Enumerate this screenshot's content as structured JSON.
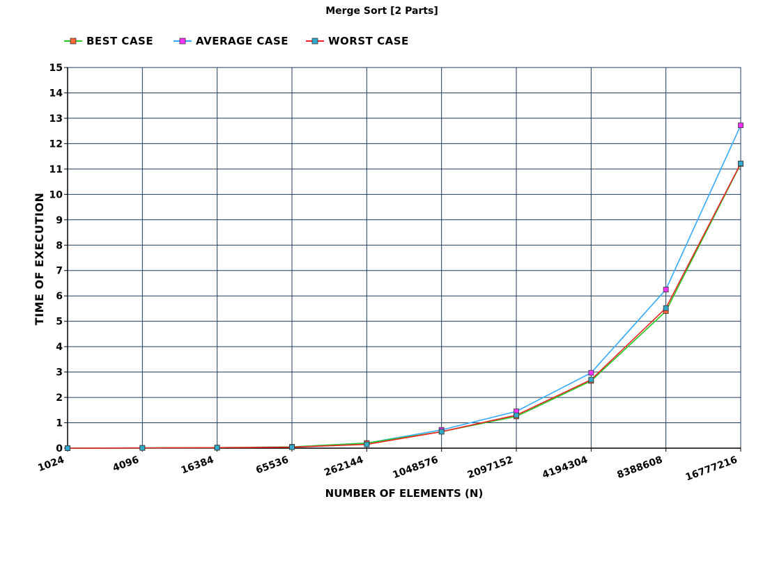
{
  "chart_data": {
    "type": "line",
    "title": "Merge Sort [2 Parts]",
    "xlabel": "NUMBER OF ELEMENTS (N)",
    "ylabel": "TIME OF EXECUTION",
    "categories": [
      "1024",
      "4096",
      "16384",
      "65536",
      "262144",
      "1048576",
      "2097152",
      "4194304",
      "8388608",
      "16777216"
    ],
    "ylim": [
      0,
      15
    ],
    "yticks": [
      0,
      1,
      2,
      3,
      4,
      5,
      6,
      7,
      8,
      9,
      10,
      11,
      12,
      13,
      14,
      15
    ],
    "grid": true,
    "legend_position": "top-left",
    "series": [
      {
        "name": "BEST CASE",
        "line_color": "#22cc22",
        "marker_color": "#ff6633",
        "values": [
          0,
          0.01,
          0.02,
          0.05,
          0.2,
          0.65,
          1.25,
          2.65,
          5.4,
          11.2
        ]
      },
      {
        "name": "AVERAGE CASE",
        "line_color": "#33aaff",
        "marker_color": "#ff33ff",
        "values": [
          0,
          0.01,
          0.02,
          0.05,
          0.2,
          0.72,
          1.45,
          2.97,
          6.25,
          12.72
        ]
      },
      {
        "name": "WORST CASE",
        "line_color": "#ee2222",
        "marker_color": "#33aacc",
        "values": [
          0,
          0.01,
          0.02,
          0.04,
          0.15,
          0.65,
          1.3,
          2.7,
          5.52,
          11.22
        ]
      }
    ]
  }
}
